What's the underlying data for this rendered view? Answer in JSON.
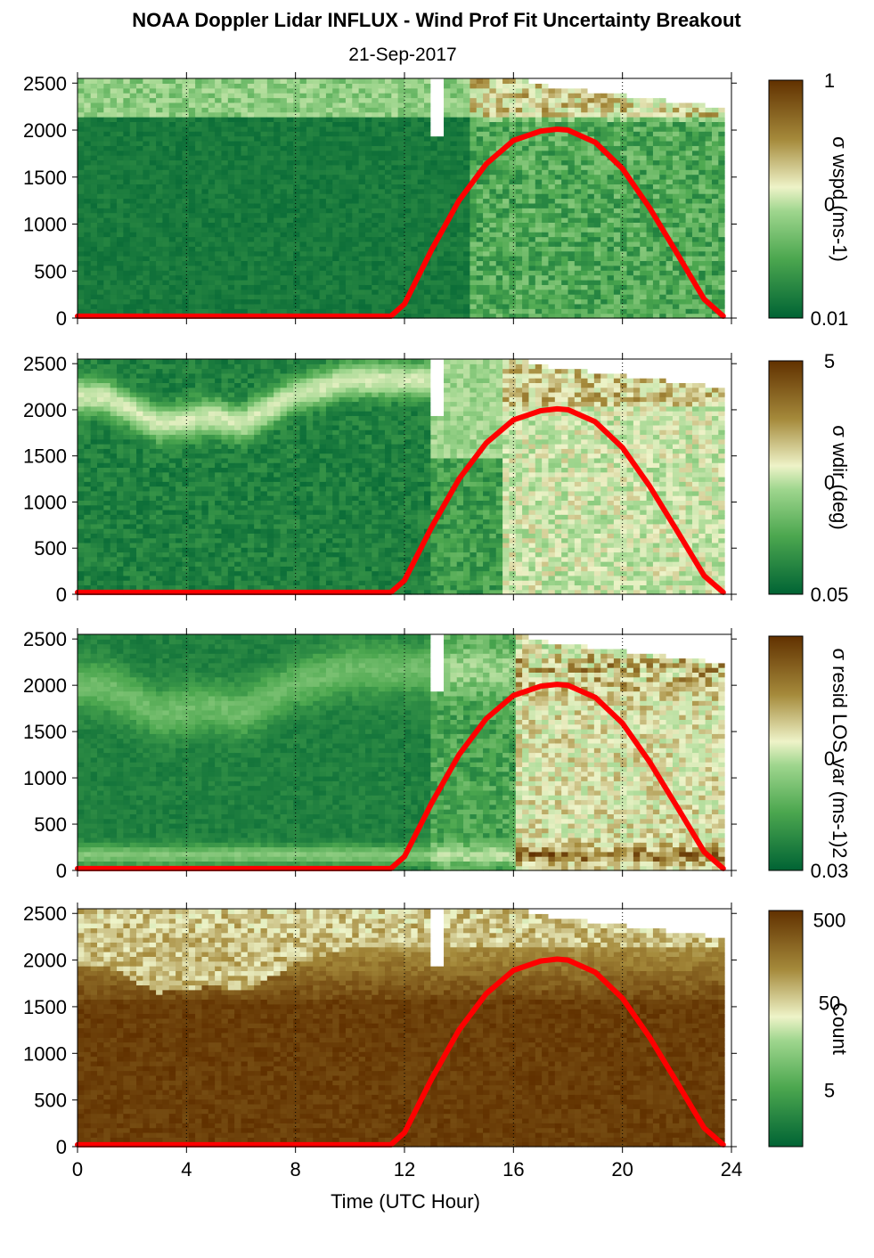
{
  "title": "NOAA Doppler Lidar INFLUX - Wind Prof Fit Uncertainty Breakout",
  "subtitle": "21-Sep-2017",
  "colors": {
    "brown_dark": "#613100",
    "tan": "#a58a3b",
    "cream": "#eef3c8",
    "green_light": "#9fd68e",
    "green_mid": "#4ca74f",
    "green_dark": "#006334",
    "sun_curve": "#ff0000",
    "missing": "#ffffff"
  },
  "chart_data": [
    {
      "type": "heatmap",
      "panel": "wspd",
      "ylim": [
        0,
        2550
      ],
      "xlim": [
        0,
        24
      ],
      "yticks": [
        "0",
        "500",
        "1000",
        "1500",
        "2000",
        "2500"
      ],
      "colorbar": {
        "label": "σ wspd (ms-1)",
        "ticks": [
          "1",
          "0",
          "0.01"
        ],
        "scale": "log"
      },
      "grid": "vertical dotted at 4, 8, 12, 16, 20"
    },
    {
      "type": "heatmap",
      "panel": "wdir",
      "ylim": [
        0,
        2550
      ],
      "xlim": [
        0,
        24
      ],
      "yticks": [
        "0",
        "500",
        "1000",
        "1500",
        "2000",
        "2500"
      ],
      "colorbar": {
        "label": "σ wdir (deg)",
        "ticks": [
          "5",
          "0",
          "0.05"
        ],
        "scale": "log"
      },
      "grid": "vertical dotted at 4, 8, 12, 16, 20"
    },
    {
      "type": "heatmap",
      "panel": "resid",
      "ylim": [
        0,
        2550
      ],
      "xlim": [
        0,
        24
      ],
      "yticks": [
        "0",
        "500",
        "1000",
        "1500",
        "2000",
        "2500"
      ],
      "colorbar": {
        "label": "σ resid LOS var (ms-1)2",
        "ticks": [
          "0",
          "0.03"
        ],
        "scale": "log"
      },
      "grid": "vertical dotted at 4, 8, 12, 16, 20"
    },
    {
      "type": "heatmap",
      "panel": "count",
      "ylim": [
        0,
        2550
      ],
      "xlim": [
        0,
        24
      ],
      "yticks": [
        "0",
        "500",
        "1000",
        "1500",
        "2000",
        "2500"
      ],
      "xticks": [
        "0",
        "4",
        "8",
        "12",
        "16",
        "20",
        "24"
      ],
      "xlabel": "Time (UTC Hour)",
      "colorbar": {
        "label": "Count",
        "ticks": [
          "500",
          "50",
          "5"
        ],
        "scale": "log"
      },
      "grid": "vertical dotted at 4, 8, 12, 16, 20"
    }
  ],
  "sun_elevation_curve": {
    "x": [
      0,
      11.5,
      12,
      13,
      14,
      15,
      16,
      17,
      17.6,
      18,
      19,
      20,
      21,
      22,
      23,
      23.7
    ],
    "y": [
      20,
      20,
      150,
      730,
      1250,
      1640,
      1890,
      1990,
      2010,
      2000,
      1870,
      1590,
      1170,
      690,
      200,
      20
    ]
  }
}
